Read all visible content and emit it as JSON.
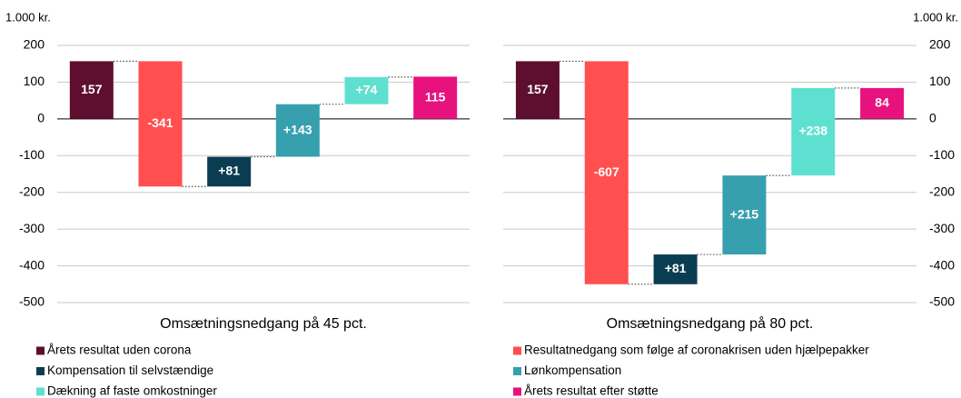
{
  "charts": [
    {
      "type": "waterfall",
      "ylabel": "1.000 kr.",
      "xlabel": "Omsætningsnedgang på 45 pct.",
      "yaxis_side": "left",
      "values": [
        157,
        -341,
        81,
        143,
        74,
        115
      ],
      "value_labels": [
        "157",
        "-341",
        "+81",
        "+143",
        "+74",
        "115"
      ],
      "measure": [
        "absolute",
        "relative",
        "relative",
        "relative",
        "relative",
        "total"
      ],
      "ylim": [
        -500,
        200
      ],
      "yticks": [
        -500,
        -400,
        -300,
        -200,
        -100,
        0,
        100,
        200
      ],
      "grid": true
    },
    {
      "type": "waterfall",
      "ylabel": "1.000 kr.",
      "xlabel": "Omsætningsnedgang på 80 pct.",
      "yaxis_side": "right",
      "values": [
        157,
        -607,
        81,
        215,
        238,
        84
      ],
      "value_labels": [
        "157",
        "-607",
        "+81",
        "+215",
        "+238",
        "84"
      ],
      "measure": [
        "absolute",
        "relative",
        "relative",
        "relative",
        "relative",
        "total"
      ],
      "ylim": [
        -500,
        200
      ],
      "yticks": [
        -500,
        -400,
        -300,
        -200,
        -100,
        0,
        100,
        200
      ],
      "grid": true
    }
  ],
  "legend": [
    {
      "name": "Årets resultat uden corona",
      "color": "#5e0e2f"
    },
    {
      "name": "Resultatnedgang som følge af coronakrisen uden hjælpepakker",
      "color": "#ff4f4f"
    },
    {
      "name": "Kompensation til selvstændige",
      "color": "#0b3d52"
    },
    {
      "name": "Lønkompensation",
      "color": "#37a0ae"
    },
    {
      "name": "Dækning af faste omkostninger",
      "color": "#5ee0d0"
    },
    {
      "name": "Årets resultat efter støtte",
      "color": "#e8127e"
    }
  ]
}
